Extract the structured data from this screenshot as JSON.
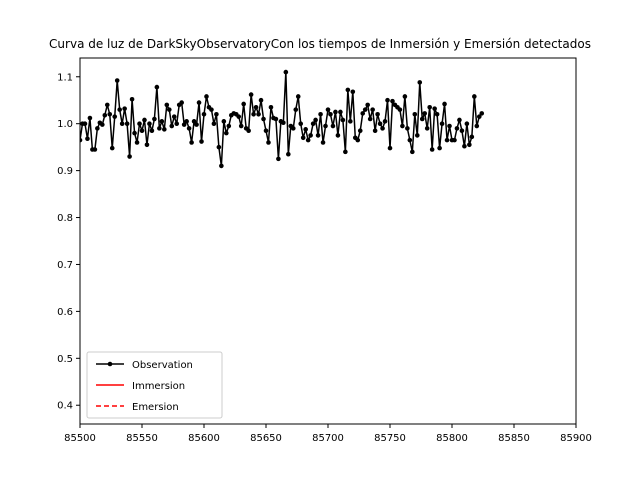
{
  "chart_data": {
    "type": "line",
    "title": "Curva de luz de DarkSkyObservatoryCon los tiempos de Inmersión y Emersión detectados",
    "xlabel": "",
    "ylabel": "",
    "xlim": [
      85500,
      85900
    ],
    "ylim": [
      0.36,
      1.14
    ],
    "xticks": [
      85500,
      85550,
      85600,
      85650,
      85700,
      85750,
      85800,
      85850,
      85900
    ],
    "yticks": [
      0.4,
      0.5,
      0.6,
      0.7,
      0.8,
      0.9,
      1.0,
      1.1
    ],
    "xtick_labels": [
      "85500",
      "85550",
      "85600",
      "85650",
      "85700",
      "85750",
      "85800",
      "85850",
      "85900"
    ],
    "ytick_labels": [
      "0.4",
      "0.5",
      "0.6",
      "0.7",
      "0.8",
      "0.9",
      "1.0",
      "1.1"
    ],
    "grid": false,
    "legend_position": "lower-left",
    "series": [
      {
        "name": "Observation",
        "color": "#000000",
        "style": "solid-with-dots",
        "x_start": 85500,
        "x_step": 2,
        "y": [
          0.965,
          1.0,
          1.0,
          0.968,
          1.012,
          0.945,
          0.945,
          0.99,
          1.002,
          0.998,
          1.018,
          1.04,
          1.02,
          0.948,
          1.015,
          1.092,
          1.03,
          1.0,
          1.032,
          1.0,
          0.93,
          1.052,
          0.98,
          0.96,
          1.0,
          0.985,
          1.008,
          0.955,
          1.0,
          0.985,
          1.01,
          1.078,
          0.99,
          1.005,
          0.988,
          1.04,
          1.03,
          0.995,
          1.015,
          1.0,
          1.04,
          1.045,
          0.998,
          1.005,
          0.99,
          0.96,
          1.005,
          0.998,
          1.045,
          0.962,
          1.02,
          1.058,
          1.035,
          1.03,
          1.0,
          1.02,
          0.95,
          0.91,
          1.005,
          0.98,
          0.995,
          1.018,
          1.022,
          1.02,
          1.015,
          0.995,
          1.042,
          0.99,
          0.985,
          1.062,
          1.02,
          1.035,
          1.02,
          1.05,
          1.01,
          0.985,
          0.96,
          1.035,
          1.012,
          1.01,
          0.925,
          1.005,
          1.002,
          1.11,
          0.935,
          0.995,
          0.99,
          1.03,
          1.058,
          1.0,
          0.97,
          0.988,
          0.965,
          0.975,
          1.0,
          1.008,
          0.975,
          1.02,
          0.96,
          0.995,
          1.03,
          1.02,
          0.995,
          1.025,
          0.975,
          1.025,
          1.008,
          0.94,
          1.072,
          1.005,
          1.068,
          0.97,
          0.965,
          0.985,
          1.022,
          1.03,
          1.04,
          1.01,
          1.03,
          0.985,
          1.02,
          1.0,
          0.99,
          1.005,
          1.05,
          0.948,
          1.048,
          1.04,
          1.035,
          1.03,
          0.995,
          1.058,
          0.99,
          0.965,
          0.94,
          1.02,
          0.975,
          1.088,
          1.01,
          1.022,
          0.99,
          1.035,
          0.945,
          1.032,
          1.02,
          0.948,
          1.0,
          1.042,
          0.965,
          0.995,
          0.965,
          0.965,
          0.99,
          1.008,
          0.985,
          0.952,
          1.0,
          0.955,
          0.972,
          1.058,
          0.995,
          1.015,
          1.022
        ]
      },
      {
        "name": "Immersion",
        "color": "#ff0000",
        "style": "solid"
      },
      {
        "name": "Emersion",
        "color": "#ff0000",
        "style": "dashed"
      }
    ]
  }
}
